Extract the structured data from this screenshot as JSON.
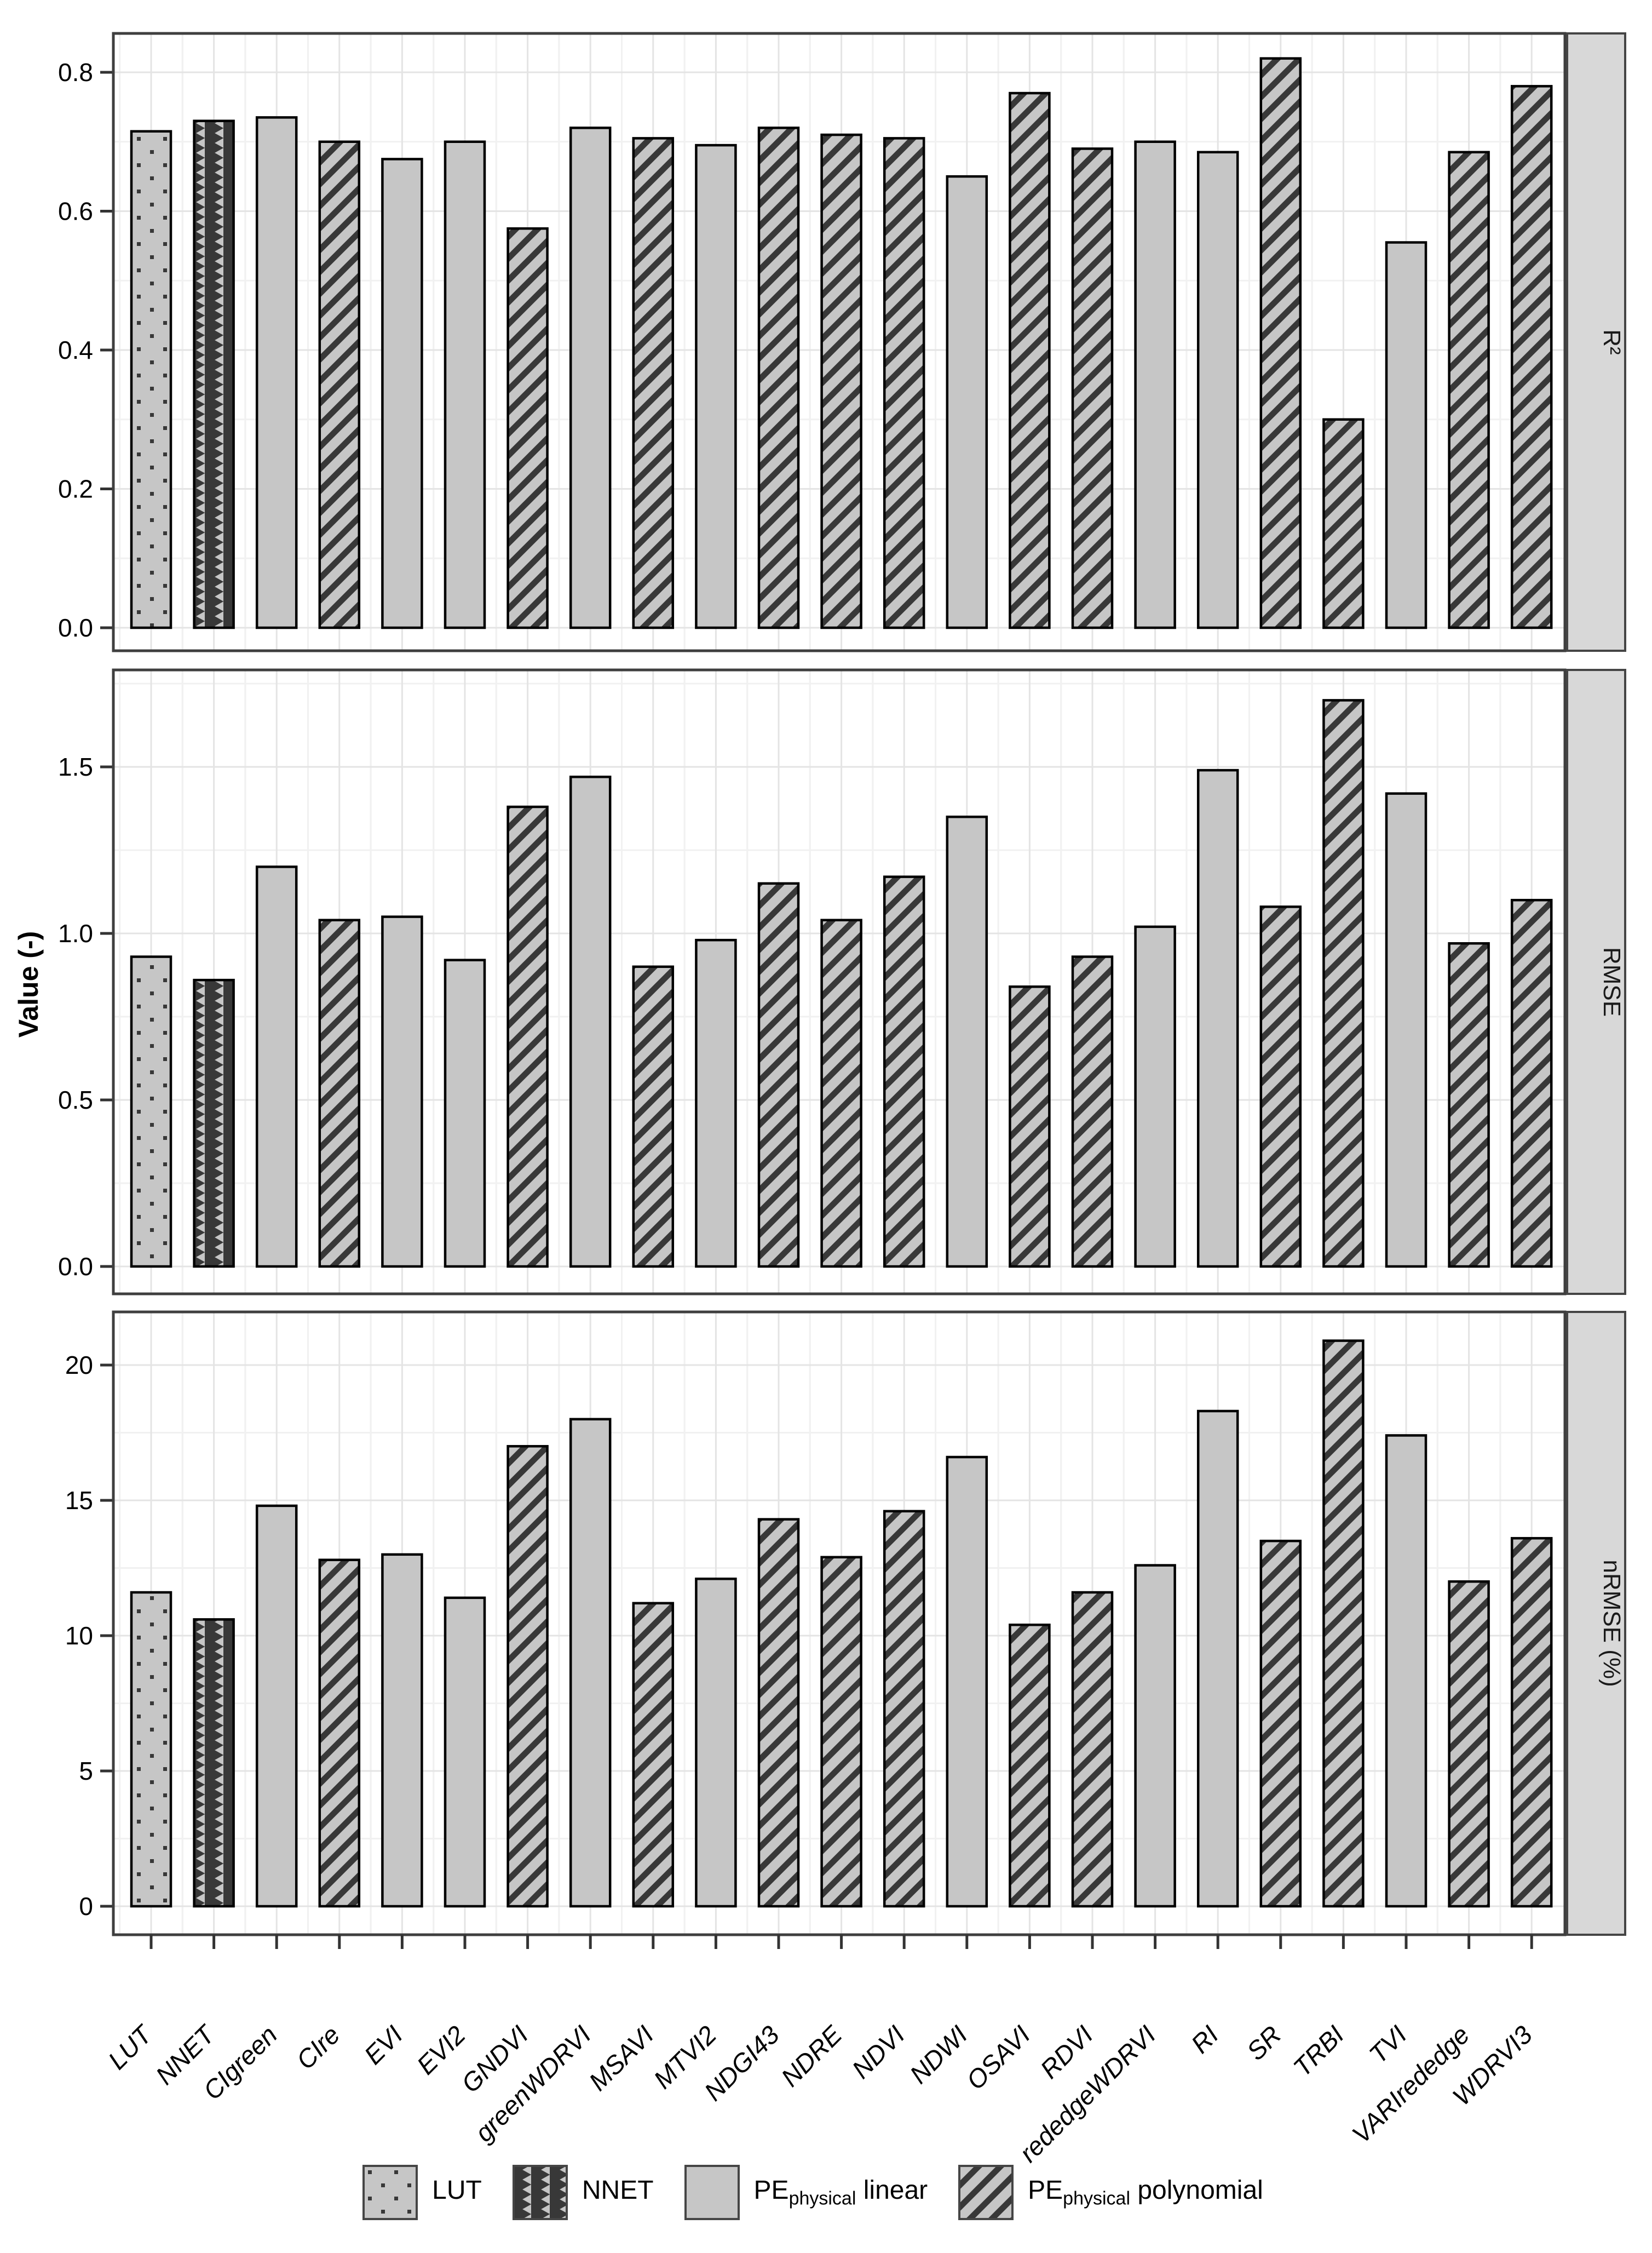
{
  "figure": {
    "ylabel": "Value (-)"
  },
  "chart_data": {
    "type": "bar",
    "title": "",
    "xlabel": "",
    "ylabel": "Value (-)",
    "grid": "on",
    "legend_position": "bottom",
    "categories": [
      "LUT",
      "NNET",
      "CIgreen",
      "CIre",
      "EVI",
      "EVI2",
      "GNDVI",
      "greenWDRVI",
      "MSAVI",
      "MTVI2",
      "NDGI43",
      "NDRE",
      "NDVI",
      "NDWI",
      "OSAVI",
      "RDVI",
      "rededgeWDRVI",
      "RI",
      "SR",
      "TRBI",
      "TVI",
      "VARIrededge",
      "WDRVI3"
    ],
    "methods": [
      "LUT",
      "NNET",
      "linear",
      "polynomial",
      "linear",
      "linear",
      "polynomial",
      "linear",
      "polynomial",
      "linear",
      "polynomial",
      "polynomial",
      "polynomial",
      "linear",
      "polynomial",
      "polynomial",
      "linear",
      "linear",
      "polynomial",
      "polynomial",
      "linear",
      "polynomial",
      "polynomial"
    ],
    "panels": [
      {
        "strip": "R²",
        "tick_labels": [
          "0.0",
          "0.2",
          "0.4",
          "0.6",
          "0.8"
        ],
        "ylim": [
          0,
          0.856
        ],
        "values": [
          0.715,
          0.73,
          0.735,
          0.7,
          0.675,
          0.7,
          0.575,
          0.72,
          0.705,
          0.695,
          0.72,
          0.71,
          0.705,
          0.65,
          0.77,
          0.69,
          0.7,
          0.685,
          0.82,
          0.3,
          0.555,
          0.685,
          0.78
        ]
      },
      {
        "strip": "RMSE",
        "tick_labels": [
          "0.0",
          "0.5",
          "1.0",
          "1.5"
        ],
        "ylim": [
          0,
          1.791
        ],
        "values": [
          0.93,
          0.86,
          1.2,
          1.04,
          1.05,
          0.92,
          1.38,
          1.47,
          0.9,
          0.98,
          1.15,
          1.04,
          1.17,
          1.35,
          0.84,
          0.93,
          1.02,
          1.49,
          1.08,
          1.7,
          1.42,
          0.97,
          1.1
        ]
      },
      {
        "strip": "nRMSE (%)",
        "tick_labels": [
          "0",
          "5",
          "10",
          "15",
          "20"
        ],
        "ylim": [
          0,
          21.96
        ],
        "values": [
          11.6,
          10.6,
          14.8,
          12.8,
          13.0,
          11.4,
          17.0,
          18.0,
          11.2,
          12.1,
          14.3,
          12.9,
          14.6,
          16.6,
          10.4,
          11.6,
          12.6,
          18.3,
          13.5,
          20.9,
          17.4,
          12.0,
          13.6
        ]
      }
    ],
    "colors": {
      "bar_fill": "#c6c6c6",
      "pattern_dark": "#383838",
      "bar_stroke": "#000000",
      "strip_fill": "#d8d8d8",
      "strip_stroke": "#454545",
      "panel_border": "#3f3f3f",
      "grid_major": "#e4e4e4",
      "grid_minor": "#f1f1f1",
      "tick_color": "#333333",
      "text_color": "#000000"
    }
  },
  "legend": {
    "items": [
      {
        "key": "LUT",
        "pattern": "dots",
        "prefix": "LUT",
        "sub": "",
        "suffix": ""
      },
      {
        "key": "NNET",
        "pattern": "zigzag",
        "prefix": "NNET",
        "sub": "",
        "suffix": ""
      },
      {
        "key": "pe-linear",
        "pattern": "solid",
        "prefix": "PE",
        "sub": "physical",
        "suffix": " linear"
      },
      {
        "key": "pe-polynomial",
        "pattern": "hatch",
        "prefix": "PE",
        "sub": "physical",
        "suffix": " polynomial"
      }
    ]
  }
}
